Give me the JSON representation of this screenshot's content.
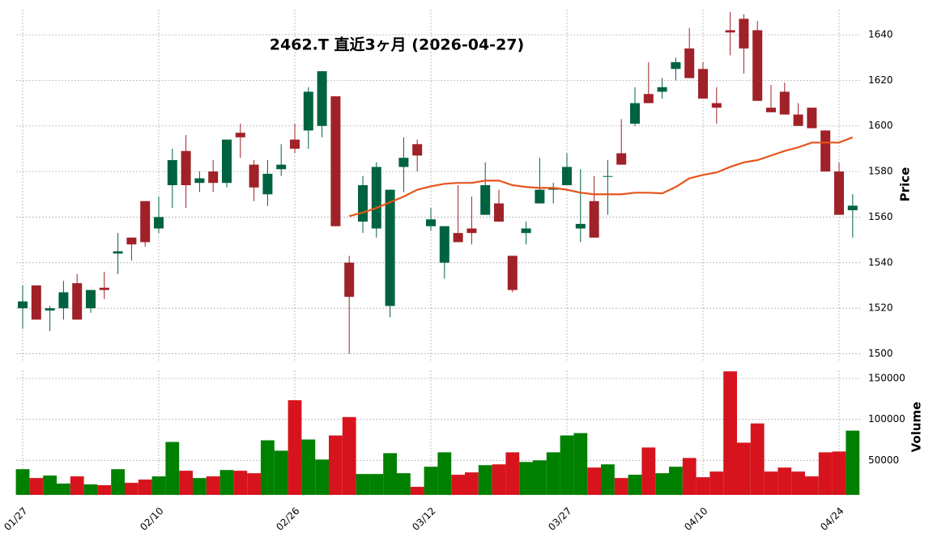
{
  "chart_data": {
    "type": "candlestick",
    "title": "2462.T  直近3ヶ月  (2026-04-27)",
    "ylabel": "Price",
    "y2label": "Volume",
    "categories": [
      "01/27",
      null,
      null,
      null,
      null,
      null,
      null,
      null,
      null,
      null,
      "02/10",
      null,
      null,
      null,
      null,
      null,
      null,
      null,
      null,
      null,
      "02/26",
      null,
      null,
      null,
      null,
      null,
      null,
      null,
      null,
      null,
      "03/12",
      null,
      null,
      null,
      null,
      null,
      null,
      null,
      null,
      null,
      "03/27",
      null,
      null,
      null,
      null,
      null,
      null,
      null,
      null,
      null,
      "04/10",
      null,
      null,
      null,
      null,
      null,
      null,
      null,
      null,
      null,
      "04/24",
      null
    ],
    "open": [
      1520,
      1530,
      1519,
      1520,
      1531,
      1520,
      1529,
      1544,
      1551,
      1567,
      1555,
      1574,
      1589,
      1575,
      1580,
      1575,
      1597,
      1583,
      1570,
      1581,
      1594,
      1598,
      1600,
      1613,
      1540,
      1558,
      1555,
      1521,
      1582,
      1592,
      1556,
      1540,
      1553,
      1555,
      1561,
      1566,
      1543,
      1553,
      1566,
      1572,
      1574,
      1555,
      1567,
      1578,
      1588,
      1601,
      1614,
      1615,
      1625,
      1634,
      1625,
      1610,
      1642,
      1647,
      1642,
      1608,
      1615,
      1605,
      1608,
      1598,
      1580,
      1563
    ],
    "high": [
      1530,
      1530,
      1521,
      1532,
      1535,
      1528,
      1536,
      1553,
      1551,
      1567,
      1569,
      1590,
      1596,
      1580,
      1585,
      1594,
      1601,
      1585,
      1585,
      1592,
      1601,
      1617,
      1624,
      1613,
      1543,
      1578,
      1584,
      1572,
      1595,
      1594,
      1564,
      1556,
      1574,
      1569,
      1584,
      1572,
      1543,
      1558,
      1586,
      1575,
      1588,
      1581,
      1578,
      1585,
      1603,
      1617,
      1628,
      1621,
      1630,
      1643,
      1628,
      1617,
      1650,
      1649,
      1646,
      1618,
      1619,
      1610,
      1608,
      1598,
      1584,
      1570
    ],
    "low": [
      1511,
      1515,
      1510,
      1515,
      1515,
      1518,
      1524,
      1535,
      1541,
      1547,
      1553,
      1564,
      1564,
      1571,
      1571,
      1573,
      1586,
      1567,
      1565,
      1578,
      1588,
      1590,
      1595,
      1556,
      1500,
      1553,
      1551,
      1516,
      1571,
      1580,
      1554,
      1533,
      1549,
      1548,
      1561,
      1558,
      1527,
      1548,
      1566,
      1566,
      1574,
      1549,
      1551,
      1561,
      1583,
      1600,
      1610,
      1612,
      1620,
      1621,
      1612,
      1601,
      1631,
      1623,
      1611,
      1606,
      1605,
      1600,
      1599,
      1580,
      1561,
      1551
    ],
    "close": [
      1523,
      1515,
      1520,
      1527,
      1515,
      1528,
      1528,
      1545,
      1548,
      1549,
      1560,
      1585,
      1574,
      1577,
      1575,
      1594,
      1595,
      1573,
      1579,
      1583,
      1590,
      1615,
      1624,
      1556,
      1525,
      1574,
      1582,
      1572,
      1586,
      1587,
      1559,
      1556,
      1549,
      1553,
      1574,
      1558,
      1528,
      1555,
      1572,
      1573,
      1582,
      1557,
      1551,
      1578,
      1583,
      1610,
      1610,
      1617,
      1628,
      1621,
      1612,
      1608,
      1641,
      1634,
      1611,
      1606,
      1605,
      1600,
      1599,
      1580,
      1561,
      1565
    ],
    "volume": [
      39200,
      28400,
      31400,
      21600,
      30400,
      20600,
      19600,
      39200,
      22500,
      26500,
      30400,
      72500,
      37300,
      28400,
      30400,
      38200,
      37300,
      34300,
      74500,
      61800,
      123500,
      75500,
      51000,
      80400,
      102900,
      33300,
      33300,
      58800,
      34300,
      17600,
      42200,
      59800,
      32400,
      35300,
      44100,
      45100,
      59800,
      48000,
      50000,
      59800,
      80400,
      83300,
      41200,
      45100,
      28400,
      32400,
      65700,
      34300,
      42200,
      52900,
      29400,
      36300,
      158800,
      71600,
      95100,
      36300,
      41200,
      36300,
      30400,
      59800,
      60800,
      86300
    ],
    "ma": {
      "color": "#e8541a",
      "values": [
        null,
        null,
        null,
        null,
        null,
        null,
        null,
        null,
        null,
        null,
        null,
        null,
        null,
        null,
        null,
        null,
        null,
        null,
        null,
        null,
        null,
        null,
        null,
        null,
        1560.4,
        1562,
        1564,
        1566.5,
        1569,
        1572,
        1573.5,
        1574.6,
        1575,
        1575,
        1576,
        1576,
        1574,
        1573.2,
        1572.8,
        1572.8,
        1572,
        1570.7,
        1570,
        1570,
        1570,
        1570.7,
        1570.7,
        1570.4,
        1573.2,
        1577,
        1578.5,
        1579.6,
        1582,
        1584,
        1585,
        1587,
        1589,
        1590.6,
        1592.7,
        1592.7,
        1592.7,
        1595
      ]
    },
    "up_color": "#006340",
    "down_color": "#a02128",
    "volume_up_color": "#008000",
    "volume_down_color": "#d7141e",
    "ylim": [
      1497,
      1651
    ],
    "yticks": [
      1500,
      1520,
      1540,
      1560,
      1580,
      1600,
      1620,
      1640
    ],
    "y2lim": [
      7800,
      160000
    ],
    "y2ticks": [
      50000,
      100000,
      150000
    ],
    "grid": true
  }
}
